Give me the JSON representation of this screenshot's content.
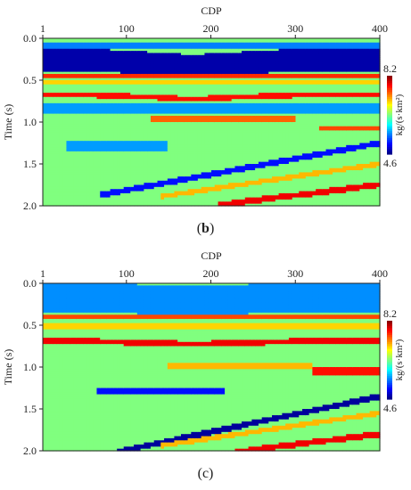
{
  "chart_data": [
    {
      "type": "heatmap",
      "panel_caption": "b",
      "xlabel": "CDP",
      "ylabel": "Time (s)",
      "x_ticks": [
        "1",
        "100",
        "200",
        "300",
        "400"
      ],
      "y_ticks": [
        "0.0",
        "0.5",
        "1.0",
        "1.5",
        "2.0"
      ],
      "xlim": [
        1,
        400
      ],
      "ylim": [
        0.0,
        2.0
      ],
      "colorbar": {
        "label": "kg/(s·km²)",
        "max_label": "8.2",
        "min_label": "4.6",
        "vmin": 4.6,
        "vmax": 8.2
      },
      "background_value": 6.4,
      "layers": [
        {
          "name": "top-blue",
          "t0": 0.13,
          "t1": 0.4,
          "v": 4.75,
          "curve": 0.06
        },
        {
          "name": "cyan-shallow",
          "t0": 0.05,
          "t1": 0.13,
          "v": 5.5,
          "curve": 0.0
        },
        {
          "name": "red-0.45",
          "t0": 0.43,
          "t1": 0.47,
          "v": 7.6,
          "curve": 0.0
        },
        {
          "name": "yellow-0.52",
          "t0": 0.5,
          "t1": 0.55,
          "v": 7.0,
          "curve": 0.0
        },
        {
          "name": "red-0.68",
          "t0": 0.65,
          "t1": 0.71,
          "v": 7.7,
          "curve": 0.04
        },
        {
          "name": "cyan-0.85",
          "t0": 0.78,
          "t1": 0.9,
          "v": 5.6,
          "curve": 0.0
        },
        {
          "name": "orange-0.96",
          "t0": 0.93,
          "t1": 0.99,
          "v": 7.4,
          "curve": 0.0,
          "x0": 130,
          "x1": 300
        },
        {
          "name": "orange-1.07",
          "t0": 1.04,
          "t1": 1.1,
          "v": 7.5,
          "curve": 0.0,
          "x0": 330,
          "x1": 400
        },
        {
          "name": "cyan-1.3",
          "t0": 1.22,
          "t1": 1.36,
          "v": 5.6,
          "curve": 0.0,
          "x0": 30,
          "x1": 150
        }
      ],
      "dips": [
        {
          "name": "blue-dip",
          "t_at_x1": 2.0,
          "t_at_x400": 1.25,
          "x_start": 70,
          "v": 5.1,
          "width": 0.07
        },
        {
          "name": "yellow-dip",
          "t_at_x1": 2.1,
          "t_at_x400": 1.5,
          "x_start": 140,
          "v": 7.1,
          "width": 0.06
        },
        {
          "name": "red-dip",
          "t_at_x1": 2.25,
          "t_at_x400": 1.75,
          "x_start": 210,
          "v": 7.8,
          "width": 0.07
        }
      ]
    },
    {
      "type": "heatmap",
      "panel_caption": "c",
      "xlabel": "CDP",
      "ylabel": "Time (s)",
      "x_ticks": [
        "1",
        "100",
        "200",
        "300",
        "400"
      ],
      "y_ticks": [
        "0.0",
        "0.5",
        "1.0",
        "1.5",
        "2.0"
      ],
      "xlim": [
        1,
        400
      ],
      "ylim": [
        0.0,
        2.0
      ],
      "colorbar": {
        "label": "kg/(s·km²)",
        "max_label": "8.2",
        "min_label": "4.6",
        "vmin": 4.6,
        "vmax": 8.2
      },
      "background_value": 6.4,
      "layers": [
        {
          "name": "cyan-top",
          "t0": 0.0,
          "t1": 0.35,
          "v": 5.55,
          "curve": 0.03
        },
        {
          "name": "red-0.4",
          "t0": 0.38,
          "t1": 0.43,
          "v": 7.5,
          "curve": 0.0
        },
        {
          "name": "yellow-0.5",
          "t0": 0.47,
          "t1": 0.55,
          "v": 7.0,
          "curve": 0.0
        },
        {
          "name": "red-0.7",
          "t0": 0.66,
          "t1": 0.73,
          "v": 7.8,
          "curve": 0.03
        },
        {
          "name": "yellow-1.0",
          "t0": 0.95,
          "t1": 1.02,
          "v": 7.1,
          "curve": 0.0,
          "x0": 150,
          "x1": 320
        },
        {
          "name": "red-1.05",
          "t0": 1.0,
          "t1": 1.1,
          "v": 7.7,
          "curve": 0.0,
          "x0": 320,
          "x1": 400
        },
        {
          "name": "blue-1.3",
          "t0": 1.25,
          "t1": 1.32,
          "v": 5.1,
          "curve": 0.0,
          "x0": 65,
          "x1": 215
        }
      ],
      "dips": [
        {
          "name": "blue-dip",
          "t_at_x1": 2.2,
          "t_at_x400": 1.35,
          "x_start": 90,
          "v": 4.7,
          "width": 0.07
        },
        {
          "name": "yellow-dip",
          "t_at_x1": 2.15,
          "t_at_x400": 1.55,
          "x_start": 140,
          "v": 7.1,
          "width": 0.06
        },
        {
          "name": "red-dip",
          "t_at_x1": 2.3,
          "t_at_x400": 1.8,
          "x_start": 230,
          "v": 7.8,
          "width": 0.07
        }
      ]
    }
  ]
}
